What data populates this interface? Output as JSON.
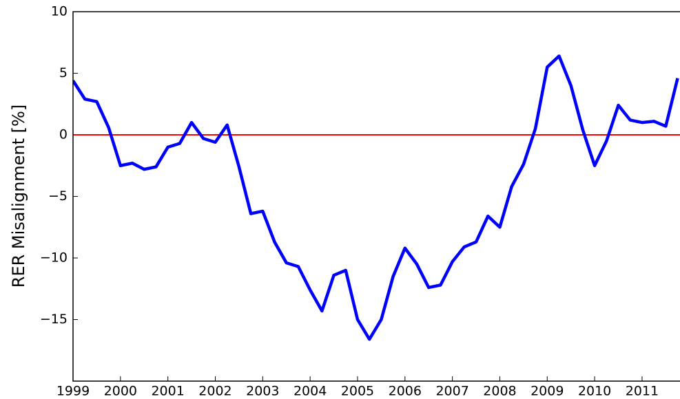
{
  "chart_data": {
    "type": "line",
    "y_label": "RER Misalignment [%]",
    "x": [
      1999,
      1999.25,
      1999.5,
      1999.75,
      2000,
      2000.25,
      2000.5,
      2000.75,
      2001,
      2001.25,
      2001.5,
      2001.75,
      2002,
      2002.25,
      2002.5,
      2002.75,
      2003,
      2003.25,
      2003.5,
      2003.75,
      2004,
      2004.25,
      2004.5,
      2004.75,
      2005,
      2005.25,
      2005.5,
      2005.75,
      2006,
      2006.25,
      2006.5,
      2006.75,
      2007,
      2007.25,
      2007.5,
      2007.75,
      2008,
      2008.25,
      2008.5,
      2008.75,
      2009,
      2009.25,
      2009.5,
      2009.75,
      2010,
      2010.25,
      2010.5,
      2010.75,
      2011,
      2011.25,
      2011.5,
      2011.75
    ],
    "series": [
      {
        "color": "#0000ff",
        "values": [
          4.4,
          2.9,
          2.7,
          0.6,
          -2.5,
          -2.3,
          -2.8,
          -2.6,
          -1.0,
          -0.7,
          1.0,
          -0.3,
          -0.6,
          0.8,
          -2.6,
          -6.4,
          -6.2,
          -8.7,
          -10.4,
          -10.7,
          -12.6,
          -14.3,
          -11.4,
          -11.0,
          -15.0,
          -16.6,
          -15.0,
          -11.5,
          -9.2,
          -10.5,
          -12.4,
          -12.2,
          -10.3,
          -9.1,
          -8.7,
          -6.6,
          -7.5,
          -4.2,
          -2.4,
          0.5,
          5.5,
          6.4,
          4.0,
          0.4,
          -2.5,
          -0.5,
          2.4,
          1.2,
          1.0,
          1.1,
          0.7,
          4.6
        ]
      }
    ],
    "hline": {
      "value": 0,
      "color": "#ff0000"
    },
    "xlim": [
      1999,
      2011.8
    ],
    "xticks": [
      1999,
      2000,
      2001,
      2002,
      2003,
      2004,
      2005,
      2006,
      2007,
      2008,
      2009,
      2010,
      2011
    ],
    "ylim": [
      -20,
      10
    ],
    "yticks": [
      {
        "value": -15,
        "label": "−15"
      },
      {
        "value": -10,
        "label": "−10"
      },
      {
        "value": -5,
        "label": "−5"
      },
      0,
      5,
      10
    ]
  }
}
